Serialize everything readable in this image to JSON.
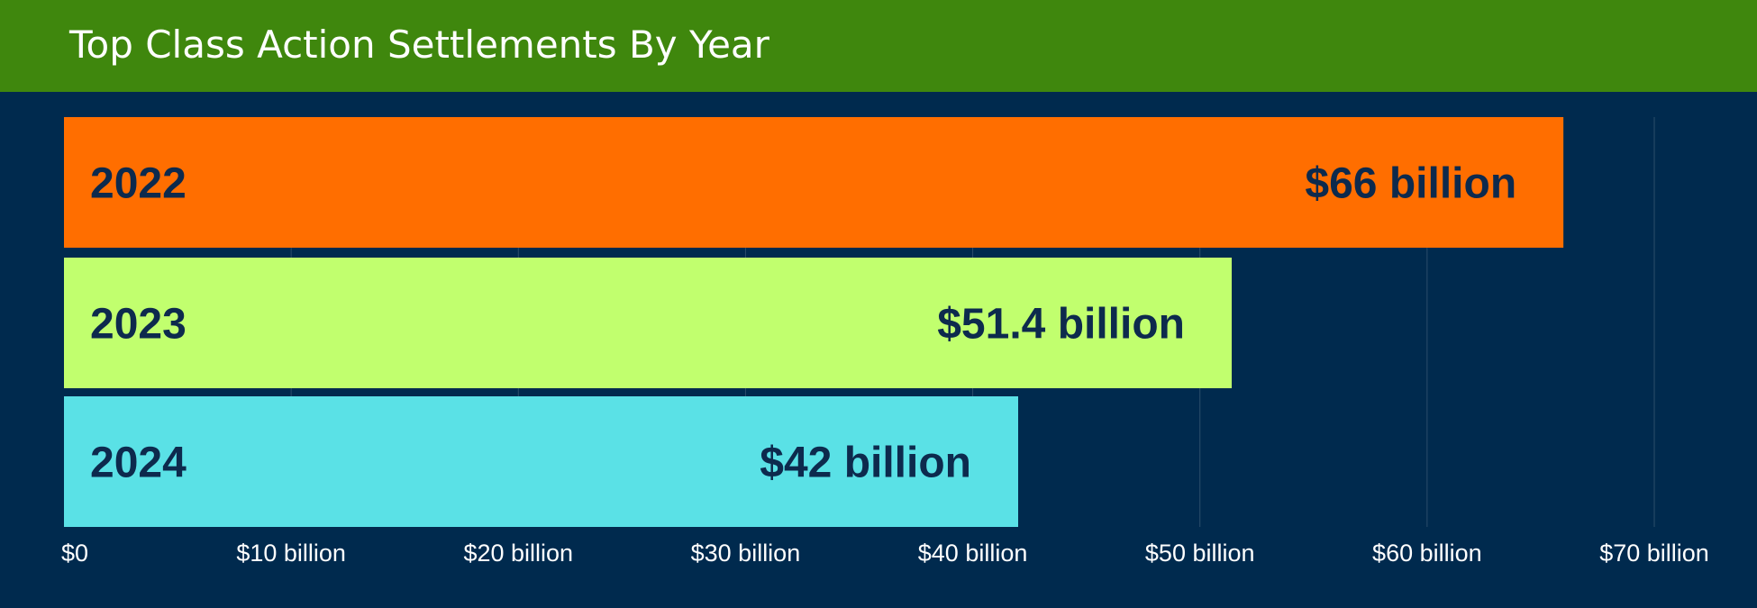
{
  "header": {
    "title": "Top Class Action Settlements By Year"
  },
  "colors": {
    "background": "#002a4e",
    "header": "#3f870d",
    "label_text": "#0d2a4d",
    "tick_text": "#ffffff",
    "grid": "#2b4d6b"
  },
  "chart_data": {
    "type": "bar",
    "orientation": "horizontal",
    "title": "Top Class Action Settlements By Year",
    "categories": [
      "2022",
      "2023",
      "2024"
    ],
    "values": [
      66,
      51.4,
      42
    ],
    "value_labels": [
      "$66 billion",
      "$51.4 billion",
      "$42 billion"
    ],
    "bar_colors": [
      "#ff6e00",
      "#c1ff6e",
      "#5ae1e6"
    ],
    "unit": "billion USD",
    "xlim": [
      0,
      70
    ],
    "x_ticks": [
      0,
      10,
      20,
      30,
      40,
      50,
      60,
      70
    ],
    "x_tick_labels": [
      "$0",
      "$10 billion",
      "$20 billion",
      "$30 billion",
      "$40 billion",
      "$50 billion",
      "$60 billion",
      "$70 billion"
    ],
    "xlabel": "",
    "ylabel": "",
    "grid": true,
    "legend": "none"
  }
}
